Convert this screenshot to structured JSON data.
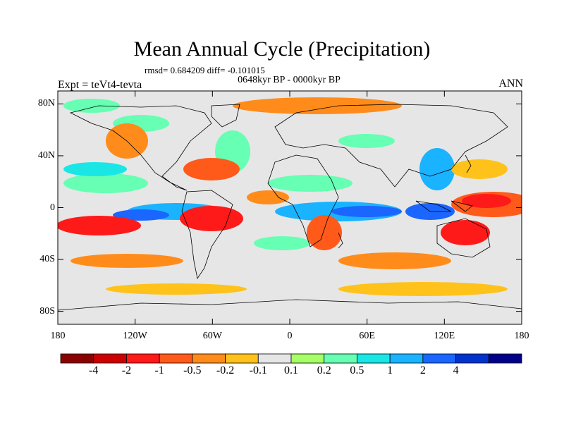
{
  "title": "Mean Annual Cycle (Precipitation)",
  "stats": "rmsd= 0.684209 diff= -0.101015",
  "period": "0648kyr BP - 0000kyr BP",
  "left_label": "Expt = teVt4-tevta",
  "right_label": "ANN",
  "lat_ticks": [
    "80N",
    "40N",
    "0",
    "40S",
    "80S"
  ],
  "lon_ticks": [
    "180",
    "120W",
    "60W",
    "0",
    "60E",
    "120E",
    "180"
  ],
  "colorbar": {
    "colors": [
      "#8b0000",
      "#cc0000",
      "#ff1a1a",
      "#ff5a1a",
      "#ff8c1a",
      "#ffc21a",
      "#e6e6e6",
      "#a6ff66",
      "#66ffb3",
      "#1ae6e6",
      "#1ab3ff",
      "#1a66ff",
      "#0033cc",
      "#00008b"
    ],
    "labels": [
      "-4",
      "-2",
      "-1",
      "-0.5",
      "-0.2",
      "-0.1",
      "0.1",
      "0.2",
      "0.5",
      "1",
      "2",
      "4"
    ]
  },
  "map": {
    "ocean_color": "#e6e6e6",
    "lat_range": [
      -90,
      90
    ],
    "lon_range": [
      -180,
      180
    ]
  }
}
